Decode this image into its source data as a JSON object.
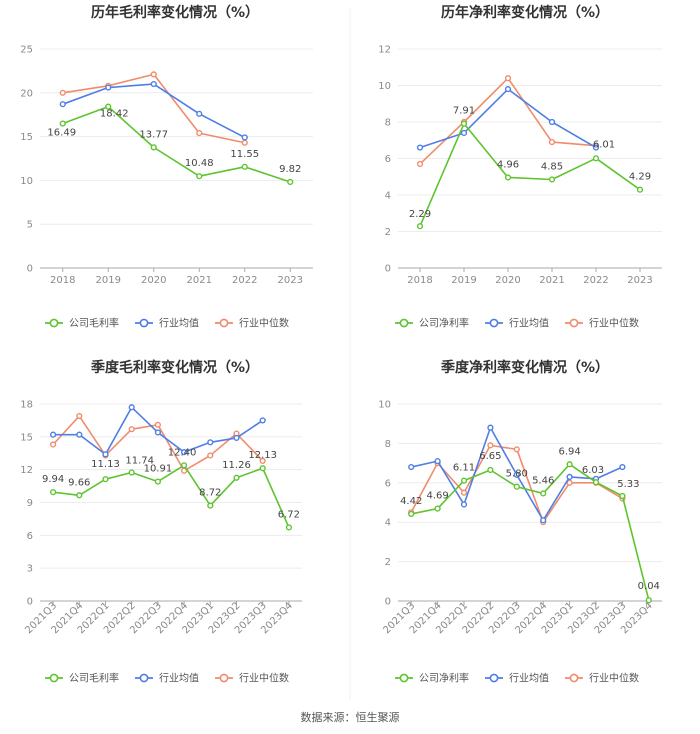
{
  "source": "数据来源：恒生聚源",
  "colors": {
    "company": "#5ec42f",
    "avg": "#4e7ee6",
    "median": "#f08c6c"
  },
  "legend": [
    "行业均值",
    "行业中位数"
  ],
  "chart_data": [
    {
      "type": "line",
      "title": "历年毛利率变化情况（%）",
      "categories": [
        "2018",
        "2019",
        "2020",
        "2021",
        "2022",
        "2023"
      ],
      "ylim": [
        0,
        25
      ],
      "yticks": [
        0,
        5,
        10,
        15,
        20,
        25
      ],
      "grid": true,
      "legend_position": "bottom",
      "series": [
        {
          "name": "公司毛利率",
          "color": "#5ec42f",
          "values": [
            16.49,
            18.42,
            13.77,
            10.48,
            11.55,
            9.82
          ],
          "labels": [
            "16.49",
            "18.42",
            "13.77",
            "10.48",
            "11.55",
            "9.82"
          ]
        },
        {
          "name": "行业均值",
          "color": "#4e7ee6",
          "values": [
            18.7,
            20.6,
            21.0,
            17.6,
            14.9,
            null
          ]
        },
        {
          "name": "行业中位数",
          "color": "#f08c6c",
          "values": [
            20.0,
            20.8,
            22.1,
            15.4,
            14.3,
            null
          ]
        }
      ]
    },
    {
      "type": "line",
      "title": "历年净利率变化情况（%）",
      "categories": [
        "2018",
        "2019",
        "2020",
        "2021",
        "2022",
        "2023"
      ],
      "ylim": [
        0,
        12
      ],
      "yticks": [
        0,
        2,
        4,
        6,
        8,
        10,
        12
      ],
      "grid": true,
      "legend_position": "bottom",
      "series": [
        {
          "name": "公司净利率",
          "color": "#5ec42f",
          "values": [
            2.29,
            7.91,
            4.96,
            4.85,
            6.01,
            4.29
          ],
          "labels": [
            "2.29",
            "7.91",
            "4.96",
            "4.85",
            "6.01",
            "4.29"
          ]
        },
        {
          "name": "行业均值",
          "color": "#4e7ee6",
          "values": [
            6.6,
            7.4,
            9.8,
            8.0,
            6.6,
            null
          ]
        },
        {
          "name": "行业中位数",
          "color": "#f08c6c",
          "values": [
            5.7,
            8.0,
            10.4,
            6.9,
            6.7,
            null
          ]
        }
      ]
    },
    {
      "type": "line",
      "title": "季度毛利率变化情况（%）",
      "categories": [
        "2021Q3",
        "2021Q4",
        "2022Q1",
        "2022Q2",
        "2022Q3",
        "2022Q4",
        "2023Q1",
        "2023Q2",
        "2023Q3",
        "2023Q4"
      ],
      "ylim": [
        0,
        18
      ],
      "yticks": [
        0,
        3,
        6,
        9,
        12,
        15,
        18
      ],
      "grid": true,
      "legend_position": "bottom",
      "series": [
        {
          "name": "公司毛利率",
          "color": "#5ec42f",
          "values": [
            9.94,
            9.66,
            11.13,
            11.74,
            10.91,
            12.4,
            8.72,
            11.26,
            12.13,
            6.72
          ],
          "labels": [
            "9.94",
            "9.66",
            "11.13",
            "11.74",
            "10.91",
            "12.40",
            "8.72",
            "11.26",
            "12.13",
            "6.72"
          ]
        },
        {
          "name": "行业均值",
          "color": "#4e7ee6",
          "values": [
            15.2,
            15.2,
            13.4,
            17.7,
            15.4,
            13.6,
            14.5,
            14.9,
            16.5,
            null
          ]
        },
        {
          "name": "行业中位数",
          "color": "#f08c6c",
          "values": [
            14.3,
            16.9,
            13.3,
            15.7,
            16.1,
            11.9,
            13.3,
            15.3,
            12.8,
            null
          ]
        }
      ]
    },
    {
      "type": "line",
      "title": "季度净利率变化情况（%）",
      "categories": [
        "2021Q3",
        "2021Q4",
        "2022Q1",
        "2022Q2",
        "2022Q3",
        "2022Q4",
        "2023Q1",
        "2023Q2",
        "2023Q3",
        "2023Q4"
      ],
      "ylim": [
        0,
        10
      ],
      "yticks": [
        0,
        2,
        4,
        6,
        8,
        10
      ],
      "grid": true,
      "legend_position": "bottom",
      "series": [
        {
          "name": "公司净利率",
          "color": "#5ec42f",
          "values": [
            4.42,
            4.69,
            6.11,
            6.65,
            5.8,
            5.46,
            6.94,
            6.03,
            5.33,
            0.04
          ],
          "labels": [
            "4.42",
            "4.69",
            "6.11",
            "6.65",
            "5.80",
            "5.46",
            "6.94",
            "6.03",
            "5.33",
            "0.04"
          ]
        },
        {
          "name": "行业均值",
          "color": "#4e7ee6",
          "values": [
            6.8,
            7.1,
            4.9,
            8.8,
            6.4,
            4.1,
            6.3,
            6.2,
            6.8,
            null
          ]
        },
        {
          "name": "行业中位数",
          "color": "#f08c6c",
          "values": [
            4.5,
            7.0,
            5.5,
            7.9,
            7.7,
            4.0,
            6.0,
            6.0,
            5.2,
            null
          ]
        }
      ]
    }
  ]
}
